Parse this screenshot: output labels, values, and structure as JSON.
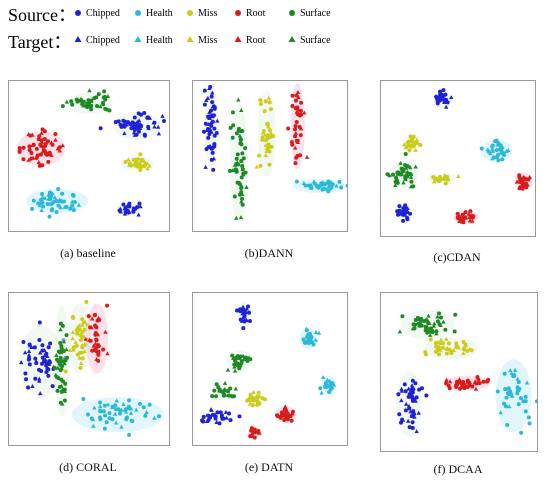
{
  "legend": {
    "source_label": "Source：",
    "target_label": "Target：",
    "classes": [
      {
        "name": "Chipped",
        "color": "#1f22d6"
      },
      {
        "name": "Health",
        "color": "#2cb9d8"
      },
      {
        "name": "Miss",
        "color": "#cccc1a"
      },
      {
        "name": "Root",
        "color": "#d81c1c"
      },
      {
        "name": "Surface",
        "color": "#1f8a24"
      }
    ],
    "source_marker": "circle",
    "target_marker": "triangle"
  },
  "chart_data": [
    {
      "type": "scatter",
      "caption": "(a) baseline",
      "clusters": [
        {
          "class": "Surface",
          "cx": 0.5,
          "cy": 0.15,
          "rx": 0.13,
          "ry": 0.06,
          "n": 45
        },
        {
          "class": "Chipped",
          "cx": 0.8,
          "cy": 0.3,
          "rx": 0.13,
          "ry": 0.08,
          "n": 55
        },
        {
          "class": "Miss",
          "cx": 0.8,
          "cy": 0.55,
          "rx": 0.09,
          "ry": 0.04,
          "n": 35
        },
        {
          "class": "Root",
          "cx": 0.2,
          "cy": 0.45,
          "rx": 0.13,
          "ry": 0.1,
          "n": 55
        },
        {
          "class": "Health",
          "cx": 0.3,
          "cy": 0.8,
          "rx": 0.17,
          "ry": 0.07,
          "n": 55
        },
        {
          "class": "Chipped",
          "cx": 0.75,
          "cy": 0.85,
          "rx": 0.07,
          "ry": 0.04,
          "n": 25
        }
      ]
    },
    {
      "type": "scatter",
      "caption": "(b)DANN",
      "clusters": [
        {
          "class": "Chipped",
          "cx": 0.12,
          "cy": 0.3,
          "rx": 0.04,
          "ry": 0.25,
          "n": 55
        },
        {
          "class": "Surface",
          "cx": 0.3,
          "cy": 0.55,
          "rx": 0.05,
          "ry": 0.35,
          "n": 60
        },
        {
          "class": "Miss",
          "cx": 0.48,
          "cy": 0.35,
          "rx": 0.05,
          "ry": 0.25,
          "n": 40
        },
        {
          "class": "Root",
          "cx": 0.68,
          "cy": 0.3,
          "rx": 0.04,
          "ry": 0.25,
          "n": 40
        },
        {
          "class": "Health",
          "cx": 0.82,
          "cy": 0.7,
          "rx": 0.15,
          "ry": 0.04,
          "n": 40
        }
      ]
    },
    {
      "type": "scatter",
      "caption": "(c)CDAN",
      "clusters": [
        {
          "class": "Chipped",
          "cx": 0.4,
          "cy": 0.12,
          "rx": 0.05,
          "ry": 0.05,
          "n": 30
        },
        {
          "class": "Miss",
          "cx": 0.2,
          "cy": 0.4,
          "rx": 0.05,
          "ry": 0.05,
          "n": 25
        },
        {
          "class": "Surface",
          "cx": 0.15,
          "cy": 0.6,
          "rx": 0.08,
          "ry": 0.08,
          "n": 40
        },
        {
          "class": "Miss",
          "cx": 0.4,
          "cy": 0.63,
          "rx": 0.08,
          "ry": 0.03,
          "n": 20
        },
        {
          "class": "Health",
          "cx": 0.75,
          "cy": 0.45,
          "rx": 0.09,
          "ry": 0.06,
          "n": 30
        },
        {
          "class": "Root",
          "cx": 0.93,
          "cy": 0.65,
          "rx": 0.05,
          "ry": 0.05,
          "n": 25
        },
        {
          "class": "Root",
          "cx": 0.55,
          "cy": 0.88,
          "rx": 0.07,
          "ry": 0.04,
          "n": 25
        },
        {
          "class": "Chipped",
          "cx": 0.15,
          "cy": 0.85,
          "rx": 0.04,
          "ry": 0.06,
          "n": 25
        }
      ]
    },
    {
      "type": "scatter",
      "caption": "(d) CORAL",
      "clusters": [
        {
          "class": "Chipped",
          "cx": 0.2,
          "cy": 0.45,
          "rx": 0.12,
          "ry": 0.2,
          "n": 55
        },
        {
          "class": "Surface",
          "cx": 0.33,
          "cy": 0.45,
          "rx": 0.04,
          "ry": 0.32,
          "n": 45
        },
        {
          "class": "Miss",
          "cx": 0.44,
          "cy": 0.3,
          "rx": 0.06,
          "ry": 0.2,
          "n": 45
        },
        {
          "class": "Root",
          "cx": 0.55,
          "cy": 0.3,
          "rx": 0.06,
          "ry": 0.2,
          "n": 40
        },
        {
          "class": "Health",
          "cx": 0.68,
          "cy": 0.8,
          "rx": 0.25,
          "ry": 0.1,
          "n": 55
        }
      ]
    },
    {
      "type": "scatter",
      "caption": "(e) DATN",
      "clusters": [
        {
          "class": "Chipped",
          "cx": 0.33,
          "cy": 0.15,
          "rx": 0.04,
          "ry": 0.08,
          "n": 25
        },
        {
          "class": "Surface",
          "cx": 0.3,
          "cy": 0.45,
          "rx": 0.07,
          "ry": 0.06,
          "n": 30
        },
        {
          "class": "Health",
          "cx": 0.75,
          "cy": 0.3,
          "rx": 0.05,
          "ry": 0.06,
          "n": 25
        },
        {
          "class": "Health",
          "cx": 0.88,
          "cy": 0.6,
          "rx": 0.04,
          "ry": 0.05,
          "n": 20
        },
        {
          "class": "Surface",
          "cx": 0.2,
          "cy": 0.65,
          "rx": 0.07,
          "ry": 0.04,
          "n": 25
        },
        {
          "class": "Miss",
          "cx": 0.4,
          "cy": 0.7,
          "rx": 0.05,
          "ry": 0.05,
          "n": 25
        },
        {
          "class": "Chipped",
          "cx": 0.15,
          "cy": 0.82,
          "rx": 0.09,
          "ry": 0.04,
          "n": 30
        },
        {
          "class": "Root",
          "cx": 0.6,
          "cy": 0.8,
          "rx": 0.06,
          "ry": 0.05,
          "n": 25
        },
        {
          "class": "Root",
          "cx": 0.4,
          "cy": 0.92,
          "rx": 0.04,
          "ry": 0.03,
          "n": 15
        }
      ]
    },
    {
      "type": "scatter",
      "caption": "(f) DCAA",
      "clusters": [
        {
          "class": "Surface",
          "cx": 0.3,
          "cy": 0.2,
          "rx": 0.15,
          "ry": 0.08,
          "n": 45
        },
        {
          "class": "Miss",
          "cx": 0.45,
          "cy": 0.35,
          "rx": 0.15,
          "ry": 0.06,
          "n": 40
        },
        {
          "class": "Root",
          "cx": 0.55,
          "cy": 0.57,
          "rx": 0.13,
          "ry": 0.04,
          "n": 40
        },
        {
          "class": "Chipped",
          "cx": 0.18,
          "cy": 0.7,
          "rx": 0.07,
          "ry": 0.18,
          "n": 50
        },
        {
          "class": "Health",
          "cx": 0.85,
          "cy": 0.65,
          "rx": 0.1,
          "ry": 0.2,
          "n": 45
        }
      ]
    }
  ]
}
